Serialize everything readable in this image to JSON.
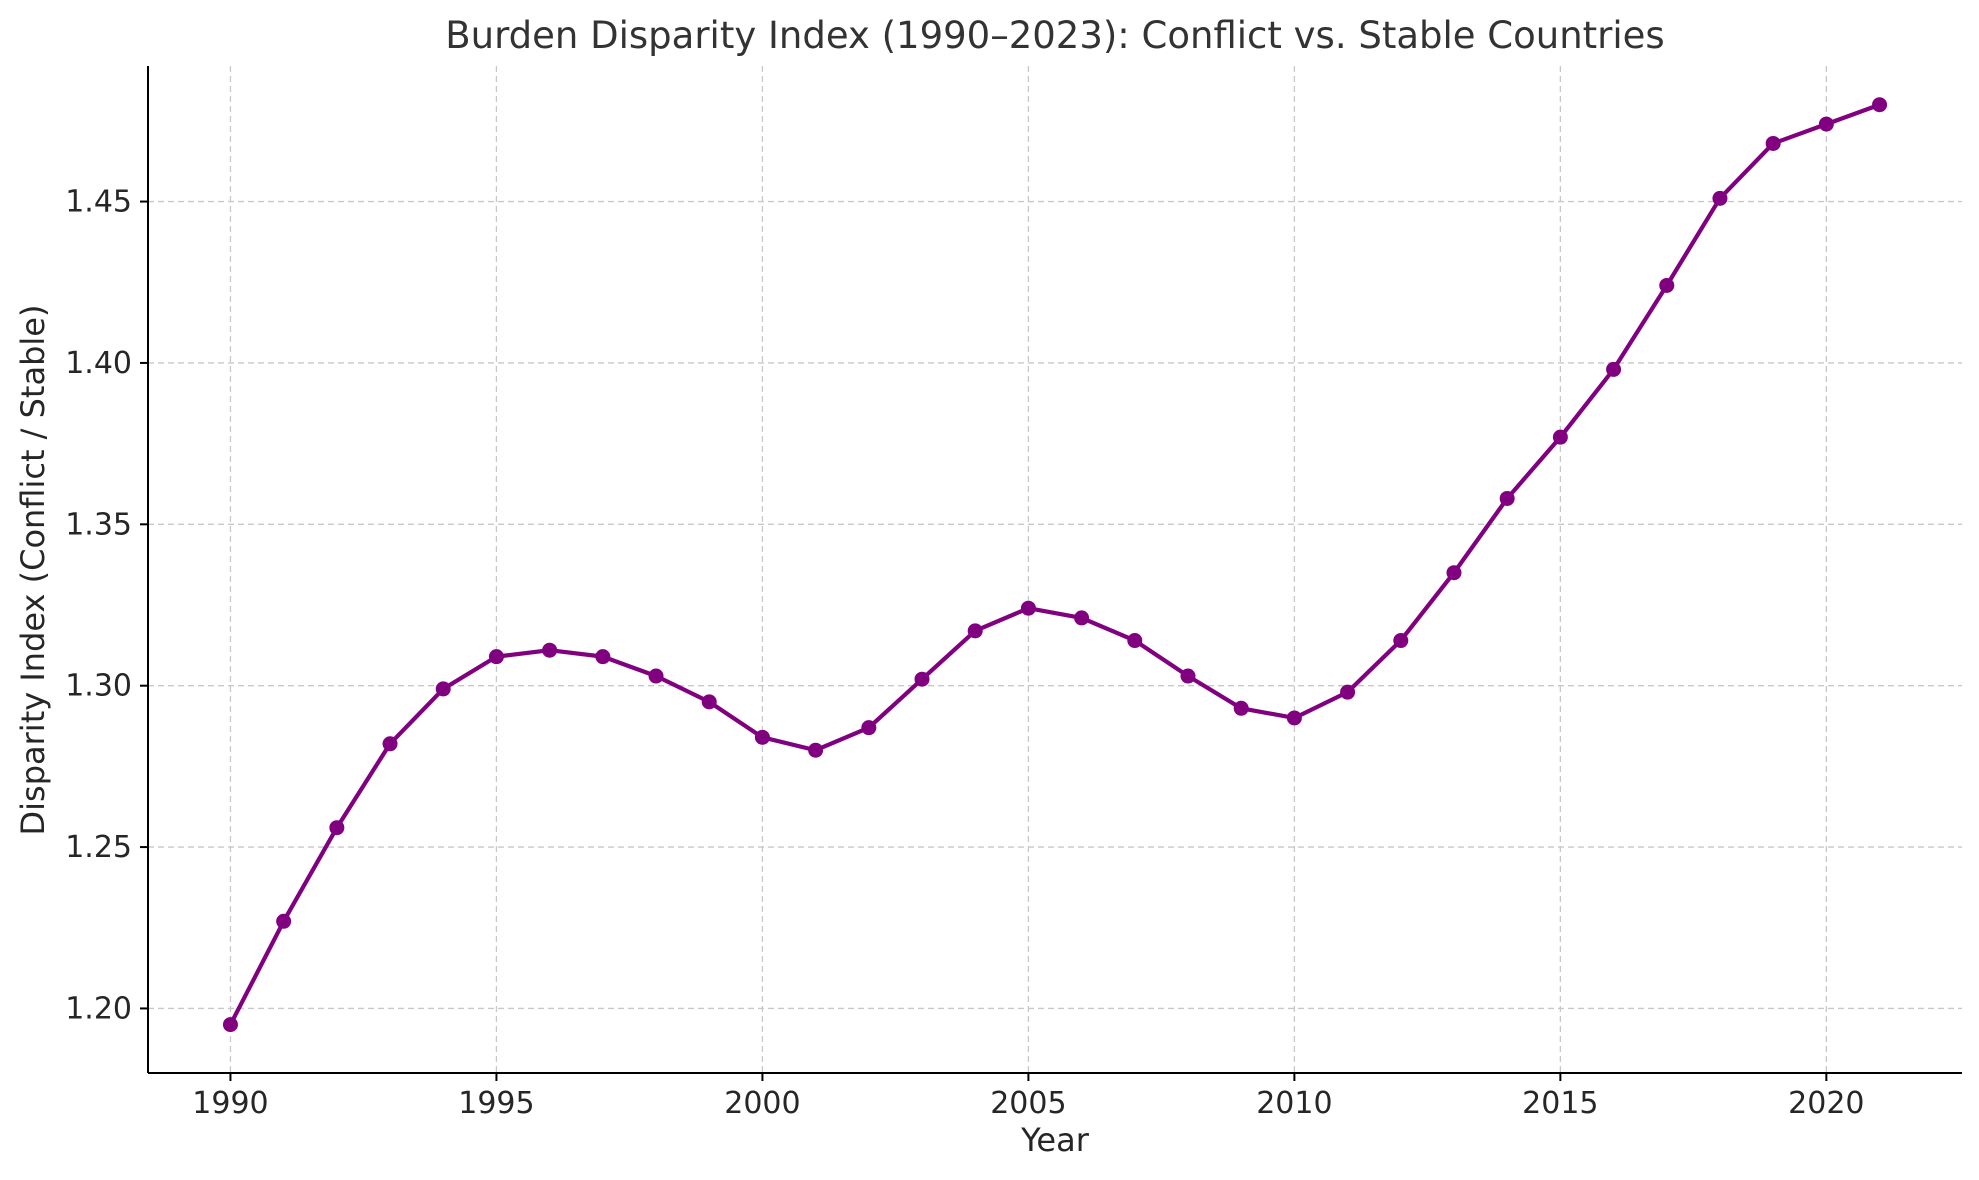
{
  "chart_data": {
    "type": "line",
    "title": "Burden Disparity Index (1990–2023): Conflict vs. Stable Countries",
    "xlabel": "Year",
    "ylabel": "Disparity Index (Conflict / Stable)",
    "xlim": [
      1988.45,
      2022.55
    ],
    "ylim": [
      1.18,
      1.492
    ],
    "x_ticks": [
      1990,
      1995,
      2000,
      2005,
      2010,
      2015,
      2020
    ],
    "y_ticks": [
      1.2,
      1.25,
      1.3,
      1.35,
      1.4,
      1.45
    ],
    "y_tick_labels": [
      "1.20",
      "1.25",
      "1.30",
      "1.35",
      "1.40",
      "1.45"
    ],
    "grid": true,
    "line_color": "#800080",
    "series": [
      {
        "x": [
          1990,
          1991,
          1992,
          1993,
          1994,
          1995,
          1996,
          1997,
          1998,
          1999,
          2000,
          2001,
          2002,
          2003,
          2004,
          2005,
          2006,
          2007,
          2008,
          2009,
          2010,
          2011,
          2012,
          2013,
          2014,
          2015,
          2016,
          2017,
          2018,
          2019,
          2020,
          2021
        ],
        "values": [
          1.195,
          1.227,
          1.256,
          1.282,
          1.299,
          1.309,
          1.311,
          1.309,
          1.303,
          1.295,
          1.284,
          1.28,
          1.287,
          1.302,
          1.317,
          1.324,
          1.321,
          1.314,
          1.303,
          1.293,
          1.29,
          1.298,
          1.314,
          1.335,
          1.358,
          1.377,
          1.398,
          1.424,
          1.451,
          1.468,
          1.474,
          1.48
        ]
      }
    ]
  }
}
